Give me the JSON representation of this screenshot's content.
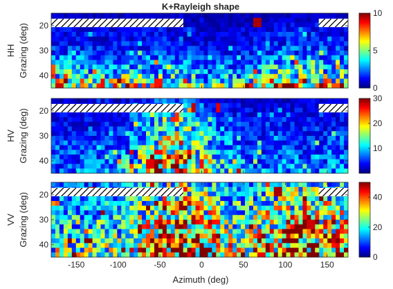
{
  "title": "K+Rayleigh shape",
  "chart_data": {
    "type": "heatmap",
    "title": "K+Rayleigh shape",
    "xlabel": "Azimuth (deg)",
    "x_range": [
      -180,
      175
    ],
    "x_ticks": [
      -150,
      -100,
      -50,
      0,
      50,
      100,
      150
    ],
    "y_range": [
      15,
      45
    ],
    "y_ticks": [
      20,
      30,
      40
    ],
    "colormap": "jet",
    "panels": [
      {
        "name": "HH",
        "ylabel": "Grazing (deg)",
        "clim": [
          0,
          10
        ],
        "colorbar_ticks": [
          0,
          5,
          10
        ],
        "masked_regions": [
          {
            "azimuth": [
              -180,
              -22
            ],
            "grazing": [
              17.2,
              20.6
            ]
          },
          {
            "azimuth": [
              140,
              175
            ],
            "grazing": [
              17.2,
              20.6
            ]
          }
        ],
        "grazing_profile": [
          0.6,
          0.6,
          0.8,
          0.9,
          1.1,
          1.1,
          1.3,
          1.5,
          1.7,
          2.0,
          2.3,
          2.7,
          3.2,
          3.8,
          4.6,
          5.4
        ],
        "azimuth_profile": [
          {
            "azimuth": -180,
            "factor": 1.1
          },
          {
            "azimuth": -120,
            "factor": 0.9
          },
          {
            "azimuth": -60,
            "factor": 1.0
          },
          {
            "azimuth": -20,
            "factor": 0.9
          },
          {
            "azimuth": 0,
            "factor": 0.7
          },
          {
            "azimuth": 50,
            "factor": 0.8
          },
          {
            "azimuth": 100,
            "factor": 1.2
          },
          {
            "azimuth": 150,
            "factor": 1.1
          },
          {
            "azimuth": 175,
            "factor": 1.0
          }
        ],
        "hotspots": [
          {
            "azimuth": 68,
            "grazing": 18.1,
            "value": 9.6
          },
          {
            "azimuth": -118,
            "grazing": 43.0,
            "value": 8.8
          },
          {
            "azimuth": -52,
            "grazing": 43.0,
            "value": 8.6
          },
          {
            "azimuth": 160,
            "grazing": 45.0,
            "value": 8.0
          }
        ]
      },
      {
        "name": "HV",
        "ylabel": "Grazing (deg)",
        "clim": [
          0,
          30
        ],
        "colorbar_ticks": [
          10,
          20,
          30
        ],
        "masked_regions": [
          {
            "azimuth": [
              -180,
              -22
            ],
            "grazing": [
              17.2,
              20.6
            ]
          },
          {
            "azimuth": [
              140,
              175
            ],
            "grazing": [
              17.2,
              20.6
            ]
          }
        ],
        "grazing_profile": [
          2.0,
          2.5,
          3.0,
          3.2,
          3.5,
          3.8,
          4.0,
          4.3,
          4.6,
          5.0,
          5.4,
          5.8,
          6.2,
          6.6,
          7.0,
          7.4
        ],
        "azimuth_profile": [
          {
            "azimuth": -180,
            "factor": 0.8
          },
          {
            "azimuth": -100,
            "factor": 1.0
          },
          {
            "azimuth": -50,
            "factor": 2.6
          },
          {
            "azimuth": -25,
            "factor": 3.2
          },
          {
            "azimuth": 0,
            "factor": 2.2
          },
          {
            "azimuth": 20,
            "factor": 1.6
          },
          {
            "azimuth": 60,
            "factor": 0.9
          },
          {
            "azimuth": 120,
            "factor": 1.0
          },
          {
            "azimuth": 175,
            "factor": 1.0
          }
        ],
        "hotspots": [
          {
            "azimuth": -10,
            "grazing": 18.1,
            "value": 28
          },
          {
            "azimuth": 20,
            "grazing": 18.1,
            "value": 27
          },
          {
            "azimuth": -60,
            "grazing": 41.0,
            "value": 27
          },
          {
            "azimuth": -30,
            "grazing": 22.2,
            "value": 25
          },
          {
            "azimuth": 0,
            "grazing": 41.0,
            "value": 26
          }
        ]
      },
      {
        "name": "VV",
        "ylabel": "Grazing (deg)",
        "clim": [
          0,
          50
        ],
        "colorbar_ticks": [
          0,
          20,
          40
        ],
        "masked_regions": [
          {
            "azimuth": [
              -180,
              -22
            ],
            "grazing": [
              17.2,
              20.6
            ]
          },
          {
            "azimuth": [
              140,
              175
            ],
            "grazing": [
              17.2,
              20.6
            ]
          }
        ],
        "grazing_profile": [
          12,
          13,
          14,
          15,
          16,
          16,
          17,
          18,
          19,
          20,
          21,
          22,
          23,
          24,
          25,
          26
        ],
        "azimuth_profile": [
          {
            "azimuth": -180,
            "factor": 0.8
          },
          {
            "azimuth": -100,
            "factor": 0.9
          },
          {
            "azimuth": -50,
            "factor": 1.4
          },
          {
            "azimuth": -25,
            "factor": 2.0
          },
          {
            "azimuth": 0,
            "factor": 1.5
          },
          {
            "azimuth": 40,
            "factor": 1.0
          },
          {
            "azimuth": 80,
            "factor": 1.3
          },
          {
            "azimuth": 120,
            "factor": 1.6
          },
          {
            "azimuth": 175,
            "factor": 1.3
          }
        ],
        "hotspots": [
          {
            "azimuth": -130,
            "grazing": 19.1,
            "value": 49
          },
          {
            "azimuth": 90,
            "grazing": 19.1,
            "value": 48
          },
          {
            "azimuth": -25,
            "grazing": 25.0,
            "value": 49
          },
          {
            "azimuth": 130,
            "grazing": 32.0,
            "value": 46
          }
        ]
      }
    ],
    "grid": false
  }
}
